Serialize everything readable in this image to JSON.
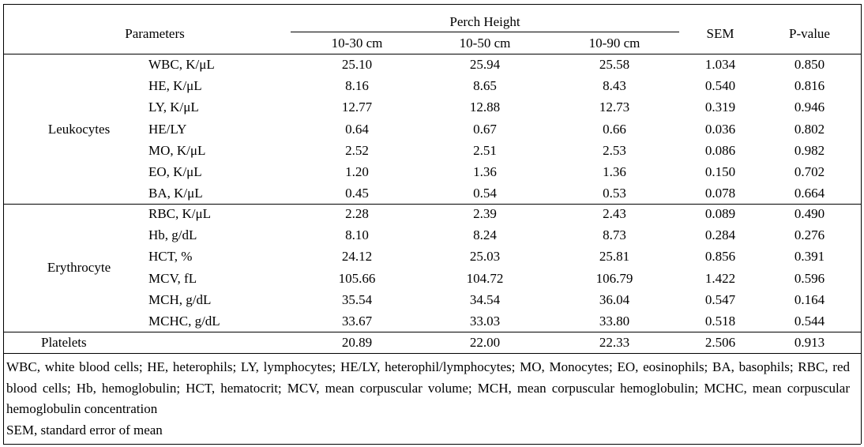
{
  "table": {
    "header": {
      "parameters": "Parameters",
      "group": "Perch Height",
      "columns": [
        "10-30 cm",
        "10-50 cm",
        "10-90 cm"
      ],
      "sem": "SEM",
      "p_value": "P-value"
    },
    "groups": [
      {
        "label": "Leukocytes",
        "rows": [
          {
            "name": "WBC, K/μL",
            "values": [
              "25.10",
              "25.94",
              "25.58",
              "1.034",
              "0.850"
            ]
          },
          {
            "name": "HE, K/μL",
            "values": [
              "8.16",
              "8.65",
              "8.43",
              "0.540",
              "0.816"
            ]
          },
          {
            "name": "LY, K/μL",
            "values": [
              "12.77",
              "12.88",
              "12.73",
              "0.319",
              "0.946"
            ]
          },
          {
            "name": "HE/LY",
            "values": [
              "0.64",
              "0.67",
              "0.66",
              "0.036",
              "0.802"
            ]
          },
          {
            "name": "MO, K/μL",
            "values": [
              "2.52",
              "2.51",
              "2.53",
              "0.086",
              "0.982"
            ]
          },
          {
            "name": "EO, K/μL",
            "values": [
              "1.20",
              "1.36",
              "1.36",
              "0.150",
              "0.702"
            ]
          },
          {
            "name": "BA, K/μL",
            "values": [
              "0.45",
              "0.54",
              "0.53",
              "0.078",
              "0.664"
            ]
          }
        ]
      },
      {
        "label": "Erythrocyte",
        "rows": [
          {
            "name": "RBC, K/μL",
            "values": [
              "2.28",
              "2.39",
              "2.43",
              "0.089",
              "0.490"
            ]
          },
          {
            "name": "Hb, g/dL",
            "values": [
              "8.10",
              "8.24",
              "8.73",
              "0.284",
              "0.276"
            ]
          },
          {
            "name": "HCT, %",
            "values": [
              "24.12",
              "25.03",
              "25.81",
              "0.856",
              "0.391"
            ]
          },
          {
            "name": "MCV, fL",
            "values": [
              "105.66",
              "104.72",
              "106.79",
              "1.422",
              "0.596"
            ]
          },
          {
            "name": "MCH, g/dL",
            "values": [
              "35.54",
              "34.54",
              "36.04",
              "0.547",
              "0.164"
            ]
          },
          {
            "name": "MCHC, g/dL",
            "values": [
              "33.67",
              "33.03",
              "33.80",
              "0.518",
              "0.544"
            ]
          }
        ]
      },
      {
        "label": "Platelets",
        "rows": [
          {
            "values": [
              "20.89",
              "22.00",
              "22.33",
              "2.506",
              "0.913"
            ]
          }
        ]
      }
    ]
  },
  "footnotes": [
    "WBC, white blood cells; HE, heterophils; LY, lymphocytes; HE/LY, heterophil/lymphocytes; MO, Monocytes; EO, eosinophils; BA, basophils; RBC, red blood cells; Hb, hemoglobulin; HCT, hematocrit; MCV, mean corpuscular volume; MCH, mean corpuscular hemoglobulin; MCHC, mean corpuscular hemoglobulin concentration",
    "SEM, standard error of mean"
  ]
}
